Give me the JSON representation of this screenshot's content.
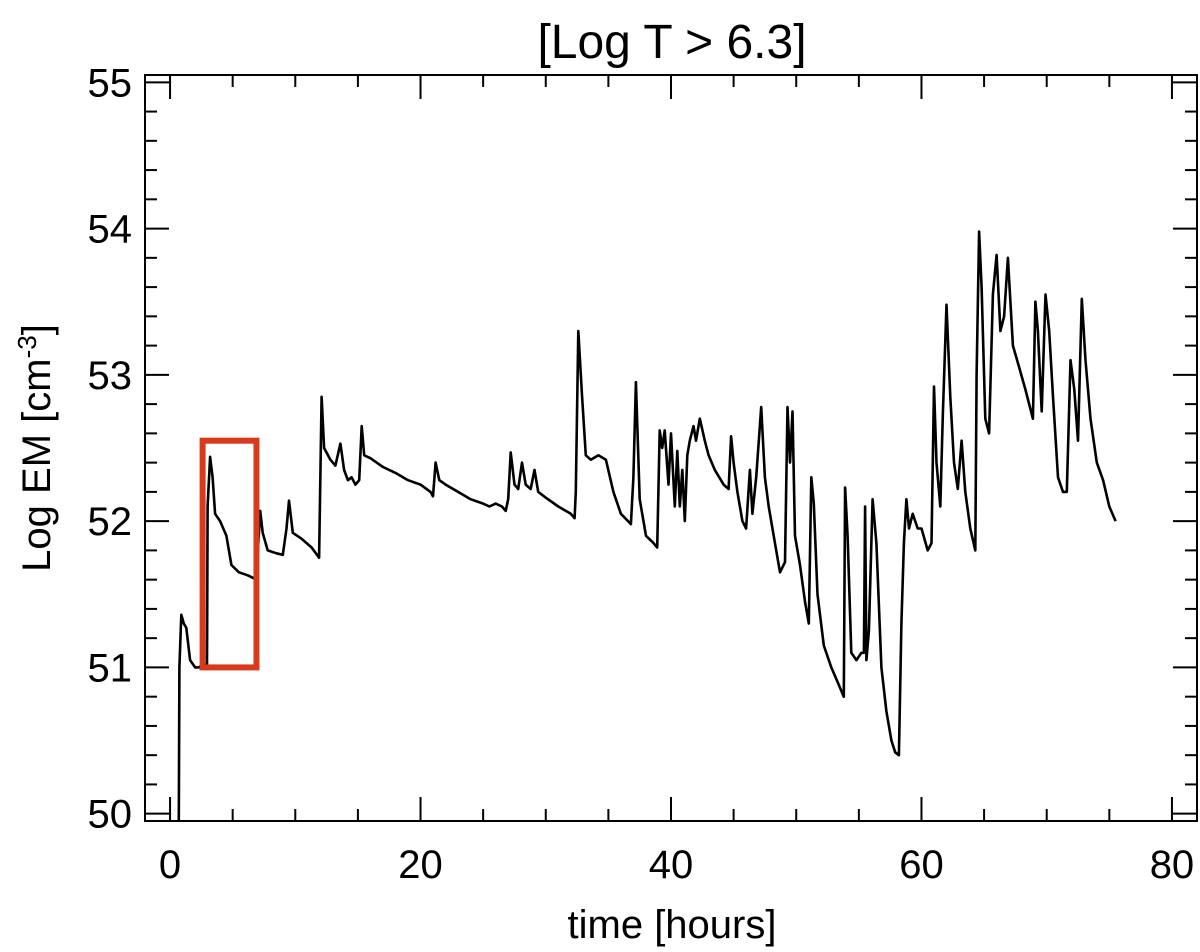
{
  "chart_data": {
    "type": "line",
    "title": "[Log T > 6.3]",
    "xlabel": "time [hours]",
    "ylabel": "Log EM [cm",
    "ylabel_exponent": "-3",
    "ylabel_close": "]",
    "xlim": [
      -2,
      82
    ],
    "ylim": [
      49.95,
      55.05
    ],
    "x_major_ticks": [
      0,
      20,
      40,
      60,
      80
    ],
    "x_minor_ticks": [
      5,
      10,
      15,
      25,
      30,
      35,
      45,
      50,
      55,
      65,
      70,
      75
    ],
    "y_major_ticks": [
      50,
      51,
      52,
      53,
      54,
      55
    ],
    "y_minor_ticks": [
      50.2,
      50.4,
      50.6,
      50.8,
      51.2,
      51.4,
      51.6,
      51.8,
      52.2,
      52.4,
      52.6,
      52.8,
      53.2,
      53.4,
      53.6,
      53.8,
      54.2,
      54.4,
      54.6,
      54.8
    ],
    "x_tick_labels": [
      "0",
      "20",
      "40",
      "60",
      "80"
    ],
    "y_tick_labels": [
      "50",
      "51",
      "52",
      "53",
      "54",
      "55"
    ],
    "grid": false,
    "series": [
      {
        "color": "#000000",
        "points": [
          [
            0.7,
            49.95
          ],
          [
            0.75,
            51.0
          ],
          [
            0.9,
            51.36
          ],
          [
            1.1,
            51.3
          ],
          [
            1.3,
            51.27
          ],
          [
            1.6,
            51.05
          ],
          [
            2.0,
            51.0
          ],
          [
            2.3,
            51.0
          ],
          [
            2.6,
            51.02
          ],
          [
            2.8,
            51.02
          ],
          [
            2.95,
            51.02
          ],
          [
            3.0,
            52.1
          ],
          [
            3.2,
            52.44
          ],
          [
            3.4,
            52.3
          ],
          [
            3.6,
            52.05
          ],
          [
            4.0,
            52.0
          ],
          [
            4.5,
            51.9
          ],
          [
            4.9,
            51.7
          ],
          [
            5.5,
            51.65
          ],
          [
            6.2,
            51.63
          ],
          [
            6.9,
            51.6
          ],
          [
            7.0,
            51.78
          ],
          [
            7.2,
            52.07
          ],
          [
            7.4,
            51.92
          ],
          [
            7.8,
            51.8
          ],
          [
            8.5,
            51.78
          ],
          [
            9.0,
            51.77
          ],
          [
            9.3,
            51.95
          ],
          [
            9.5,
            52.14
          ],
          [
            9.8,
            51.92
          ],
          [
            10.5,
            51.88
          ],
          [
            11.3,
            51.82
          ],
          [
            11.9,
            51.75
          ],
          [
            12.1,
            52.85
          ],
          [
            12.3,
            52.5
          ],
          [
            12.8,
            52.42
          ],
          [
            13.2,
            52.38
          ],
          [
            13.6,
            52.53
          ],
          [
            13.9,
            52.35
          ],
          [
            14.2,
            52.28
          ],
          [
            14.5,
            52.3
          ],
          [
            14.8,
            52.25
          ],
          [
            15.1,
            52.28
          ],
          [
            15.3,
            52.65
          ],
          [
            15.5,
            52.45
          ],
          [
            16.0,
            52.43
          ],
          [
            17.0,
            52.37
          ],
          [
            18.0,
            52.33
          ],
          [
            19.0,
            52.28
          ],
          [
            20.0,
            52.25
          ],
          [
            20.8,
            52.2
          ],
          [
            21.0,
            52.17
          ],
          [
            21.2,
            52.4
          ],
          [
            21.5,
            52.28
          ],
          [
            22.0,
            52.25
          ],
          [
            23.0,
            52.2
          ],
          [
            24.0,
            52.15
          ],
          [
            25.0,
            52.12
          ],
          [
            25.5,
            52.1
          ],
          [
            26.0,
            52.12
          ],
          [
            26.5,
            52.1
          ],
          [
            26.8,
            52.07
          ],
          [
            27.0,
            52.15
          ],
          [
            27.2,
            52.47
          ],
          [
            27.5,
            52.25
          ],
          [
            27.8,
            52.22
          ],
          [
            28.1,
            52.4
          ],
          [
            28.4,
            52.25
          ],
          [
            28.8,
            52.22
          ],
          [
            29.1,
            52.35
          ],
          [
            29.4,
            52.2
          ],
          [
            30.0,
            52.16
          ],
          [
            31.0,
            52.1
          ],
          [
            32.0,
            52.05
          ],
          [
            32.3,
            52.02
          ],
          [
            32.4,
            52.2
          ],
          [
            32.6,
            53.3
          ],
          [
            32.9,
            52.85
          ],
          [
            33.2,
            52.45
          ],
          [
            33.6,
            52.42
          ],
          [
            34.2,
            52.45
          ],
          [
            34.8,
            52.42
          ],
          [
            35.4,
            52.2
          ],
          [
            36.0,
            52.05
          ],
          [
            36.8,
            51.98
          ],
          [
            37.0,
            52.3
          ],
          [
            37.2,
            52.95
          ],
          [
            37.5,
            52.15
          ],
          [
            38.0,
            51.9
          ],
          [
            38.6,
            51.85
          ],
          [
            38.9,
            51.82
          ],
          [
            39.1,
            52.62
          ],
          [
            39.3,
            52.5
          ],
          [
            39.5,
            52.62
          ],
          [
            39.8,
            52.25
          ],
          [
            40.0,
            52.6
          ],
          [
            40.3,
            52.1
          ],
          [
            40.5,
            52.48
          ],
          [
            40.7,
            52.1
          ],
          [
            40.9,
            52.35
          ],
          [
            41.1,
            52.0
          ],
          [
            41.3,
            52.45
          ],
          [
            41.5,
            52.55
          ],
          [
            41.8,
            52.65
          ],
          [
            42.0,
            52.55
          ],
          [
            42.3,
            52.7
          ],
          [
            42.7,
            52.55
          ],
          [
            43.0,
            52.45
          ],
          [
            43.5,
            52.35
          ],
          [
            44.2,
            52.25
          ],
          [
            44.6,
            52.22
          ],
          [
            44.8,
            52.58
          ],
          [
            45.0,
            52.4
          ],
          [
            45.3,
            52.2
          ],
          [
            45.7,
            52.0
          ],
          [
            46.0,
            51.95
          ],
          [
            46.3,
            52.35
          ],
          [
            46.5,
            52.05
          ],
          [
            46.8,
            52.3
          ],
          [
            47.2,
            52.78
          ],
          [
            47.5,
            52.3
          ],
          [
            47.8,
            52.1
          ],
          [
            48.2,
            51.9
          ],
          [
            48.7,
            51.65
          ],
          [
            49.1,
            51.72
          ],
          [
            49.3,
            52.78
          ],
          [
            49.5,
            52.4
          ],
          [
            49.7,
            52.75
          ],
          [
            49.9,
            51.9
          ],
          [
            50.3,
            51.7
          ],
          [
            50.7,
            51.45
          ],
          [
            51.0,
            51.3
          ],
          [
            51.2,
            52.3
          ],
          [
            51.4,
            52.12
          ],
          [
            51.7,
            51.5
          ],
          [
            52.2,
            51.15
          ],
          [
            52.8,
            51.0
          ],
          [
            53.3,
            50.9
          ],
          [
            53.8,
            50.8
          ],
          [
            53.9,
            52.23
          ],
          [
            54.1,
            51.9
          ],
          [
            54.4,
            51.1
          ],
          [
            54.8,
            51.05
          ],
          [
            55.2,
            51.1
          ],
          [
            55.4,
            51.1
          ],
          [
            55.5,
            52.1
          ],
          [
            55.6,
            51.05
          ],
          [
            55.8,
            51.25
          ],
          [
            56.1,
            52.15
          ],
          [
            56.4,
            51.85
          ],
          [
            56.8,
            51.0
          ],
          [
            57.2,
            50.7
          ],
          [
            57.6,
            50.5
          ],
          [
            57.9,
            50.42
          ],
          [
            58.2,
            50.4
          ],
          [
            58.4,
            51.3
          ],
          [
            58.6,
            51.85
          ],
          [
            58.8,
            52.15
          ],
          [
            59.0,
            51.95
          ],
          [
            59.3,
            52.05
          ],
          [
            59.7,
            51.95
          ],
          [
            60.0,
            51.95
          ],
          [
            60.5,
            51.8
          ],
          [
            60.8,
            51.85
          ],
          [
            61.0,
            52.92
          ],
          [
            61.2,
            52.4
          ],
          [
            61.5,
            52.1
          ],
          [
            61.7,
            52.72
          ],
          [
            62.0,
            53.48
          ],
          [
            62.3,
            52.85
          ],
          [
            62.6,
            52.4
          ],
          [
            62.9,
            52.22
          ],
          [
            63.2,
            52.55
          ],
          [
            63.5,
            52.2
          ],
          [
            63.9,
            51.95
          ],
          [
            64.3,
            51.8
          ],
          [
            64.4,
            53.0
          ],
          [
            64.6,
            53.98
          ],
          [
            64.8,
            53.6
          ],
          [
            65.1,
            52.7
          ],
          [
            65.4,
            52.6
          ],
          [
            65.7,
            53.55
          ],
          [
            66.0,
            53.82
          ],
          [
            66.3,
            53.3
          ],
          [
            66.6,
            53.4
          ],
          [
            66.9,
            53.8
          ],
          [
            67.3,
            53.2
          ],
          [
            67.8,
            53.05
          ],
          [
            68.3,
            52.9
          ],
          [
            68.9,
            52.7
          ],
          [
            69.1,
            53.5
          ],
          [
            69.3,
            53.3
          ],
          [
            69.6,
            52.75
          ],
          [
            69.9,
            53.55
          ],
          [
            70.2,
            53.3
          ],
          [
            70.5,
            52.85
          ],
          [
            70.9,
            52.3
          ],
          [
            71.3,
            52.2
          ],
          [
            71.6,
            52.2
          ],
          [
            71.9,
            53.1
          ],
          [
            72.2,
            52.9
          ],
          [
            72.5,
            52.55
          ],
          [
            72.8,
            53.52
          ],
          [
            73.1,
            53.1
          ],
          [
            73.5,
            52.7
          ],
          [
            74.0,
            52.4
          ],
          [
            74.5,
            52.28
          ],
          [
            75.0,
            52.1
          ],
          [
            75.5,
            52.0
          ]
        ]
      }
    ],
    "annotation_box": {
      "x_range": [
        2.6,
        6.9
      ],
      "y_range": [
        51.0,
        52.55
      ],
      "color": "#d93a1b"
    }
  }
}
